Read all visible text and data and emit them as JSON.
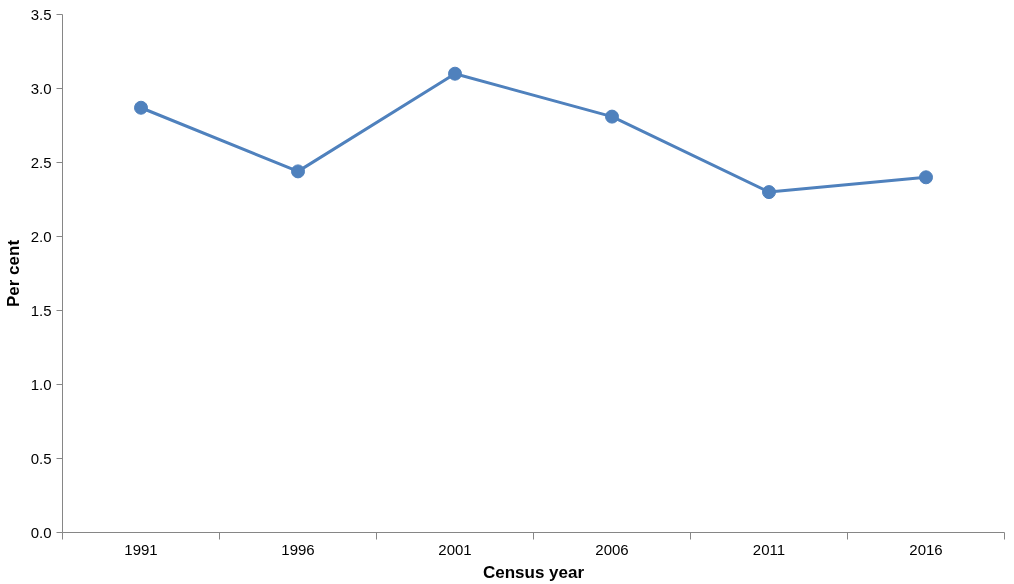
{
  "chart_data": {
    "type": "line",
    "xlabel": "Census year",
    "ylabel": "Per cent",
    "categories": [
      "1991",
      "1996",
      "2001",
      "2006",
      "2011",
      "2016"
    ],
    "series": [
      {
        "color": "#4f81bd",
        "values": [
          2.87,
          2.44,
          3.1,
          2.81,
          2.3,
          2.4
        ]
      }
    ],
    "ylim": [
      0,
      3.5
    ],
    "yticks": [
      {
        "value": 0,
        "label": "0.0"
      },
      0.5,
      {
        "value": 1,
        "label": "1.0"
      },
      1.5,
      {
        "value": 2,
        "label": "2.0"
      },
      2.5,
      {
        "value": 3,
        "label": "3.0"
      },
      3.5
    ],
    "grid": false,
    "marker": "circle",
    "line_style": "solid"
  }
}
